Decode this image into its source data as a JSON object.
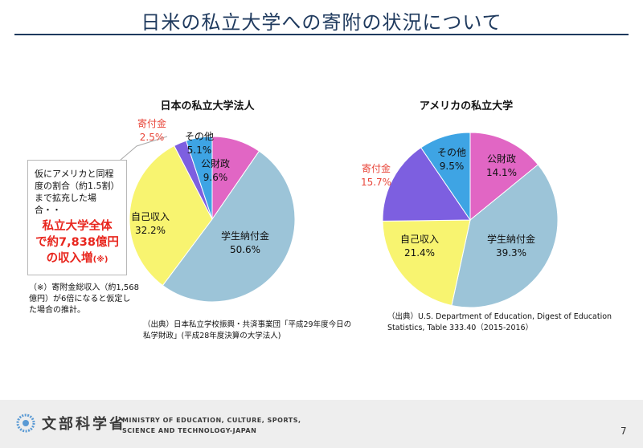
{
  "title": "日米の私立大学への寄附の状況について",
  "chart_data": [
    {
      "type": "pie",
      "title": "日本の私立大学法人",
      "series": [
        {
          "name": "公財政",
          "value": 9.6,
          "value_label": "9.6%",
          "color": "#e166c4"
        },
        {
          "name": "学生納付金",
          "value": 50.6,
          "value_label": "50.6%",
          "color": "#9cc4d8"
        },
        {
          "name": "自己収入",
          "value": 32.2,
          "value_label": "32.2%",
          "color": "#f8f470"
        },
        {
          "name": "寄付金",
          "value": 2.5,
          "value_label": "2.5%",
          "color": "#7d5fe0"
        },
        {
          "name": "その他",
          "value": 5.1,
          "value_label": "5.1%",
          "color": "#3ea4e4"
        }
      ]
    },
    {
      "type": "pie",
      "title": "アメリカの私立大学",
      "series": [
        {
          "name": "公財政",
          "value": 14.1,
          "value_label": "14.1%",
          "color": "#e166c4"
        },
        {
          "name": "学生納付金",
          "value": 39.3,
          "value_label": "39.3%",
          "color": "#9cc4d8"
        },
        {
          "name": "自己収入",
          "value": 21.4,
          "value_label": "21.4%",
          "color": "#f8f470"
        },
        {
          "name": "寄付金",
          "value": 15.7,
          "value_label": "15.7%",
          "color": "#7d5fe0"
        },
        {
          "name": "その他",
          "value": 9.5,
          "value_label": "9.5%",
          "color": "#3ea4e4"
        }
      ]
    }
  ],
  "callout": {
    "line1": "仮にアメリカと同程",
    "line2": "度の割合（約1.5割）",
    "line3": "まで拡充した場合・・",
    "big1": "私立大学全体",
    "big2": "で約7,838億円",
    "big3": "の収入増",
    "big3_note": "(※)"
  },
  "note": {
    "line1": "（※）寄附金総収入（約1,568",
    "line2": "億円）が6倍になると仮定し",
    "line3": "た場合の推計。"
  },
  "source_left": {
    "line1": "（出典）日本私立学校振興・共済事業団「平成29年度今日の",
    "line2": "私学財政」(平成28年度決算の大学法人)"
  },
  "source_right": {
    "line1": "（出典）U.S. Department of Education, Digest of Education",
    "line2": "Statistics, Table 333.40（2015-2016）"
  },
  "footer": {
    "org_jp": "文部科学省",
    "org_en_1": "MINISTRY OF EDUCATION, CULTURE, SPORTS,",
    "org_en_2": "SCIENCE AND TECHNOLOGY-JAPAN",
    "logo_icon": "mext-logo-icon",
    "page_number": "7"
  }
}
